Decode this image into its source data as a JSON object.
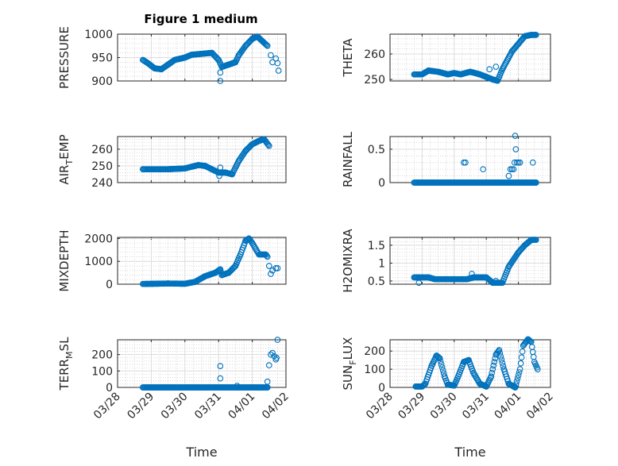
{
  "figure_title": "Figure 1 medium",
  "colors": {
    "marker": "#0072BD",
    "axis": "#262626",
    "grid_major": "#dcdcdc",
    "grid_minor": "#c8c8c8"
  },
  "chart_data": [
    {
      "type": "scatter",
      "ylabel": "PRESSURE",
      "ylim": [
        900,
        1000
      ],
      "yticks": [
        900,
        950,
        1000
      ],
      "xlabel": "",
      "keys": [
        [
          0.75,
          945
        ],
        [
          0.9,
          938
        ],
        [
          1.1,
          927
        ],
        [
          1.3,
          925
        ],
        [
          1.5,
          935
        ],
        [
          1.7,
          945
        ],
        [
          2.0,
          950
        ],
        [
          2.2,
          956
        ],
        [
          2.5,
          958
        ],
        [
          2.8,
          960
        ],
        [
          3.0,
          945
        ],
        [
          3.1,
          930
        ],
        [
          3.3,
          935
        ],
        [
          3.5,
          940
        ],
        [
          3.6,
          955
        ],
        [
          3.8,
          975
        ],
        [
          4.0,
          990
        ],
        [
          4.15,
          995
        ],
        [
          4.3,
          985
        ],
        [
          4.45,
          975
        ]
      ],
      "extra": [
        [
          3.05,
          900
        ],
        [
          3.05,
          918
        ],
        [
          4.55,
          955
        ],
        [
          4.6,
          940
        ],
        [
          4.7,
          948
        ],
        [
          4.75,
          938
        ],
        [
          4.78,
          922
        ]
      ]
    },
    {
      "type": "scatter",
      "ylabel": "THETA",
      "ylim": [
        249.4,
        267.8
      ],
      "yticks": [
        250,
        260
      ],
      "xlabel": "",
      "keys": [
        [
          0.75,
          252
        ],
        [
          1.0,
          252
        ],
        [
          1.2,
          253.5
        ],
        [
          1.5,
          253
        ],
        [
          1.8,
          252
        ],
        [
          2.0,
          252.5
        ],
        [
          2.2,
          252
        ],
        [
          2.5,
          253
        ],
        [
          2.8,
          252
        ],
        [
          3.0,
          251
        ],
        [
          3.2,
          250
        ],
        [
          3.35,
          249.5
        ],
        [
          3.5,
          254
        ],
        [
          3.8,
          261
        ],
        [
          4.0,
          264
        ],
        [
          4.2,
          267
        ],
        [
          4.4,
          267.5
        ],
        [
          4.55,
          267.5
        ]
      ],
      "extra": [
        [
          3.1,
          254
        ],
        [
          3.3,
          255
        ]
      ]
    },
    {
      "type": "scatter",
      "ylabel": "AIR_TEMP",
      "ylim": [
        240,
        267.6
      ],
      "yticks": [
        240,
        250,
        260
      ],
      "xlabel": "",
      "keys": [
        [
          0.75,
          248
        ],
        [
          1.5,
          248
        ],
        [
          2.0,
          248.5
        ],
        [
          2.4,
          250.5
        ],
        [
          2.6,
          250
        ],
        [
          3.0,
          246
        ],
        [
          3.2,
          246
        ],
        [
          3.4,
          245
        ],
        [
          3.6,
          253
        ],
        [
          3.8,
          259
        ],
        [
          4.0,
          263
        ],
        [
          4.2,
          265
        ],
        [
          4.35,
          266
        ],
        [
          4.5,
          262
        ]
      ],
      "extra": [
        [
          3.05,
          249
        ],
        [
          3.02,
          244
        ]
      ]
    },
    {
      "type": "scatter",
      "ylabel": "RAINFALL",
      "ylim": [
        0,
        0.69
      ],
      "yticks": [
        0,
        0.5
      ],
      "xlabel": "",
      "keys": [
        [
          0.75,
          0
        ],
        [
          4.55,
          0
        ]
      ],
      "extra": [
        [
          2.3,
          0.3
        ],
        [
          2.35,
          0.3
        ],
        [
          2.9,
          0.2
        ],
        [
          3.7,
          0.1
        ],
        [
          3.75,
          0.2
        ],
        [
          3.8,
          0.2
        ],
        [
          3.85,
          0.2
        ],
        [
          3.88,
          0.3
        ],
        [
          3.9,
          0.7
        ],
        [
          3.92,
          0.5
        ],
        [
          3.95,
          0.3
        ],
        [
          4.0,
          0.3
        ],
        [
          4.05,
          0.3
        ],
        [
          4.45,
          0.3
        ]
      ]
    },
    {
      "type": "scatter",
      "ylabel": "MIXDEPTH",
      "ylim": [
        0,
        2050
      ],
      "yticks": [
        0,
        1000,
        2000
      ],
      "xlabel": "",
      "keys": [
        [
          0.75,
          10
        ],
        [
          1.5,
          30
        ],
        [
          2.0,
          20
        ],
        [
          2.3,
          100
        ],
        [
          2.6,
          350
        ],
        [
          2.9,
          500
        ],
        [
          3.05,
          650
        ],
        [
          3.1,
          400
        ],
        [
          3.3,
          500
        ],
        [
          3.5,
          800
        ],
        [
          3.65,
          1300
        ],
        [
          3.8,
          1900
        ],
        [
          3.9,
          2000
        ],
        [
          4.0,
          1800
        ],
        [
          4.2,
          1300
        ],
        [
          4.4,
          1300
        ],
        [
          4.45,
          1200
        ]
      ],
      "extra": [
        [
          4.5,
          800
        ],
        [
          4.55,
          450
        ],
        [
          4.6,
          600
        ],
        [
          4.7,
          700
        ],
        [
          4.75,
          700
        ]
      ]
    },
    {
      "type": "scatter",
      "ylabel": "H2OMIXRA",
      "ylim": [
        0.41,
        1.72
      ],
      "yticks": [
        0.5,
        1,
        1.5
      ],
      "xlabel": "",
      "keys": [
        [
          0.75,
          0.6
        ],
        [
          1.2,
          0.6
        ],
        [
          1.4,
          0.55
        ],
        [
          2.0,
          0.55
        ],
        [
          2.4,
          0.55
        ],
        [
          2.6,
          0.6
        ],
        [
          3.0,
          0.6
        ],
        [
          3.2,
          0.45
        ],
        [
          3.5,
          0.45
        ],
        [
          3.7,
          0.9
        ],
        [
          4.0,
          1.3
        ],
        [
          4.2,
          1.5
        ],
        [
          4.4,
          1.65
        ],
        [
          4.55,
          1.65
        ]
      ],
      "extra": [
        [
          2.55,
          0.7
        ],
        [
          3.3,
          0.5
        ],
        [
          0.9,
          0.45
        ]
      ]
    },
    {
      "type": "scatter",
      "ylabel": "TERR_MSL",
      "ylim": [
        0,
        290
      ],
      "yticks": [
        0,
        100,
        200
      ],
      "xlabel": "Time",
      "keys": [
        [
          0.75,
          0
        ],
        [
          4.45,
          0
        ]
      ],
      "extra": [
        [
          3.05,
          55
        ],
        [
          3.05,
          130
        ],
        [
          3.55,
          10
        ],
        [
          4.45,
          35
        ],
        [
          4.5,
          135
        ],
        [
          4.55,
          200
        ],
        [
          4.6,
          210
        ],
        [
          4.65,
          190
        ],
        [
          4.7,
          170
        ],
        [
          4.72,
          180
        ],
        [
          4.75,
          290
        ]
      ]
    },
    {
      "type": "scatter",
      "ylabel": "SUN_FLUX",
      "ylim": [
        0,
        262
      ],
      "yticks": [
        0,
        100,
        200
      ],
      "xlabel": "Time",
      "keys": [
        [
          0.8,
          5
        ],
        [
          1.0,
          5
        ],
        [
          1.1,
          20
        ],
        [
          1.3,
          120
        ],
        [
          1.45,
          175
        ],
        [
          1.55,
          160
        ],
        [
          1.7,
          60
        ],
        [
          1.8,
          15
        ],
        [
          2.0,
          10
        ],
        [
          2.1,
          50
        ],
        [
          2.3,
          140
        ],
        [
          2.45,
          150
        ],
        [
          2.6,
          80
        ],
        [
          2.8,
          20
        ],
        [
          3.0,
          5
        ],
        [
          3.15,
          60
        ],
        [
          3.3,
          180
        ],
        [
          3.4,
          205
        ],
        [
          3.55,
          100
        ],
        [
          3.7,
          20
        ],
        [
          3.9,
          0
        ],
        [
          4.05,
          100
        ],
        [
          4.15,
          230
        ],
        [
          4.3,
          265
        ],
        [
          4.4,
          250
        ],
        [
          4.5,
          140
        ],
        [
          4.6,
          100
        ]
      ],
      "extra": []
    }
  ],
  "x_axis": {
    "xlim_days": [
      0,
      5
    ],
    "tick_labels": [
      "03/28",
      "03/29",
      "03/30",
      "03/31",
      "04/01",
      "04/02"
    ]
  }
}
